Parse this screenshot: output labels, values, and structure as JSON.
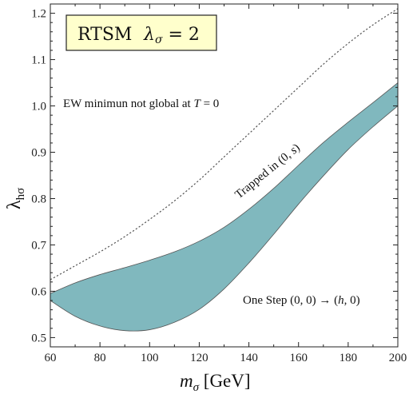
{
  "chart_data": {
    "type": "area",
    "xlim": [
      60,
      200
    ],
    "ylim": [
      0.48,
      1.22
    ],
    "x_ticks": [
      60,
      80,
      100,
      120,
      140,
      160,
      180,
      200
    ],
    "y_ticks": [
      0.5,
      0.6,
      0.7,
      0.8,
      0.9,
      1.0,
      1.1,
      1.2
    ],
    "x_tick_labels": [
      "60",
      "80",
      "100",
      "120",
      "140",
      "160",
      "180",
      "200"
    ],
    "y_tick_labels": [
      "0.5",
      "0.6",
      "0.7",
      "0.8",
      "0.9",
      "1.0",
      "1.1",
      "1.2"
    ],
    "xlabel_main": "m",
    "xlabel_sub": "σ",
    "xlabel_unit": " [GeV]",
    "ylabel_main": "λ",
    "ylabel_sub": "hσ",
    "grid": false,
    "legend_box": {
      "model": "RTSM",
      "param": "λ",
      "param_sub": "σ",
      "param_value": " = 2"
    },
    "band_upper": {
      "x": [
        60,
        70,
        80,
        90,
        100,
        110,
        120,
        130,
        140,
        150,
        160,
        170,
        180,
        190,
        200
      ],
      "y": [
        0.595,
        0.618,
        0.636,
        0.651,
        0.667,
        0.685,
        0.708,
        0.738,
        0.777,
        0.822,
        0.872,
        0.921,
        0.965,
        1.007,
        1.05
      ]
    },
    "band_lower": {
      "x": [
        60,
        70,
        80,
        90,
        100,
        110,
        120,
        130,
        140,
        150,
        160,
        170,
        180,
        190,
        200
      ],
      "y": [
        0.58,
        0.546,
        0.525,
        0.515,
        0.517,
        0.533,
        0.561,
        0.605,
        0.661,
        0.723,
        0.788,
        0.849,
        0.906,
        0.955,
        1.0
      ]
    },
    "dotted_boundary": {
      "x": [
        60,
        70,
        80,
        90,
        100,
        110,
        120,
        130,
        140,
        150,
        160,
        170,
        180,
        190,
        200
      ],
      "y": [
        0.625,
        0.655,
        0.685,
        0.718,
        0.755,
        0.795,
        0.84,
        0.89,
        0.94,
        0.99,
        1.04,
        1.09,
        1.135,
        1.175,
        1.21
      ]
    },
    "band_color": "#80b8be",
    "band_edge_color": "#555555",
    "dotted_color": "#555555",
    "annotations": {
      "ew_text": "EW minimun not global at ",
      "ew_var": "T",
      "ew_tail": " = 0",
      "trapped_text": "Trapped in (0, ",
      "trapped_var": "s",
      "trapped_tail": ")",
      "onestep_text": "One Step (0, 0) → (",
      "onestep_var": "h",
      "onestep_tail": ", 0)"
    }
  }
}
